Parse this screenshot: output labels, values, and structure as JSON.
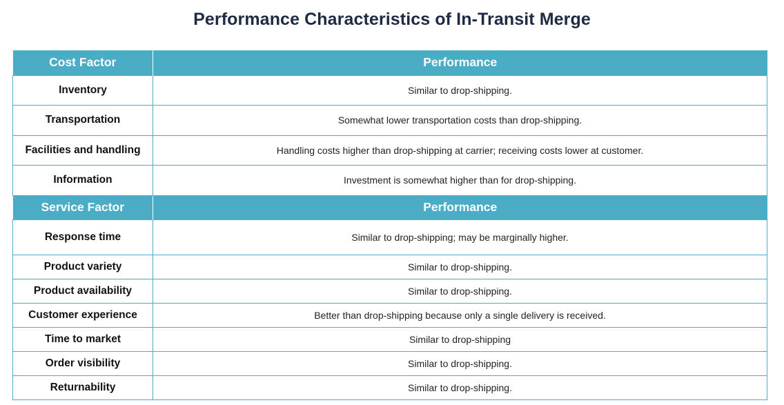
{
  "title": "Performance Characteristics of In-Transit Merge",
  "cost_section": {
    "header_factor": "Cost Factor",
    "header_performance": "Performance",
    "rows": [
      {
        "factor": "Inventory",
        "performance": "Similar to drop-shipping."
      },
      {
        "factor": "Transportation",
        "performance": "Somewhat lower transportation costs than drop-shipping."
      },
      {
        "factor": "Facilities and handling",
        "performance": "Handling costs higher than drop-shipping at carrier; receiving costs lower at customer."
      },
      {
        "factor": "Information",
        "performance": "Investment is somewhat higher than for drop-shipping."
      }
    ]
  },
  "service_section": {
    "header_factor": "Service Factor",
    "header_performance": "Performance",
    "rows": [
      {
        "factor": "Response time",
        "performance": "Similar to drop-shipping; may be marginally higher."
      },
      {
        "factor": "Product variety",
        "performance": "Similar to drop-shipping."
      },
      {
        "factor": "Product availability",
        "performance": "Similar to drop-shipping."
      },
      {
        "factor": "Customer experience",
        "performance": "Better than drop-shipping because only a single delivery is received."
      },
      {
        "factor": "Time to market",
        "performance": "Similar to drop-shipping"
      },
      {
        "factor": "Order visibility",
        "performance": "Similar to drop-shipping."
      },
      {
        "factor": "Returnability",
        "performance": "Similar to drop-shipping."
      }
    ]
  },
  "colors": {
    "header_bg": "#4bacc6",
    "title_color": "#1f2a44"
  }
}
